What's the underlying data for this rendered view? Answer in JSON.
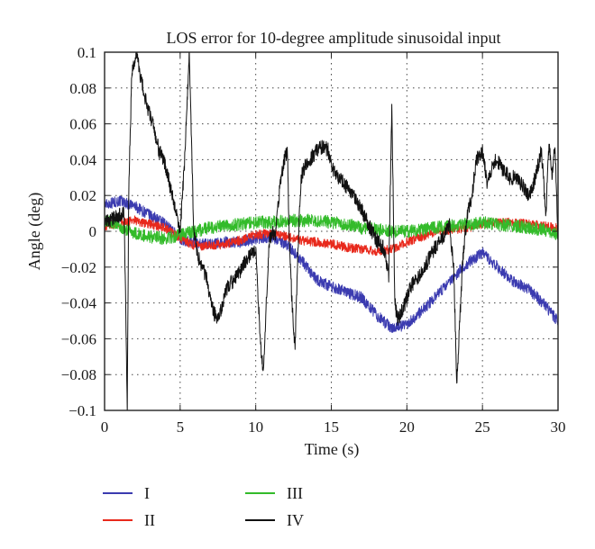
{
  "chart_data": {
    "type": "line",
    "title": "LOS error for 10-degree amplitude sinusoidal input",
    "xlabel": "Time (s)",
    "ylabel": "Angle (deg)",
    "xlim": [
      0,
      30
    ],
    "ylim": [
      -0.1,
      0.1
    ],
    "x_ticks": [
      "0",
      "5",
      "10",
      "15",
      "20",
      "25",
      "30"
    ],
    "y_ticks": [
      "0.1",
      "0.08",
      "0.06",
      "0.04",
      "0.02",
      "0",
      "−0.02",
      "−0.04",
      "−0.06",
      "−0.08",
      "−0.1"
    ],
    "grid": true,
    "legend_position": "below",
    "series": [
      {
        "name": "I",
        "color": "#3b3bb0",
        "x": [
          0,
          1,
          2,
          3,
          4,
          5,
          6,
          7,
          8,
          9,
          10,
          11,
          12,
          13,
          14,
          15,
          16,
          17,
          18,
          19,
          20,
          21,
          22,
          23,
          24,
          25,
          26,
          27,
          28,
          29,
          30
        ],
        "y": [
          0.015,
          0.017,
          0.014,
          0.009,
          0.004,
          -0.004,
          -0.007,
          -0.007,
          -0.006,
          -0.006,
          -0.004,
          -0.003,
          -0.007,
          -0.016,
          -0.027,
          -0.031,
          -0.034,
          -0.037,
          -0.047,
          -0.054,
          -0.052,
          -0.044,
          -0.036,
          -0.026,
          -0.018,
          -0.012,
          -0.02,
          -0.028,
          -0.032,
          -0.04,
          -0.05
        ]
      },
      {
        "name": "II",
        "color": "#e8291c",
        "x": [
          0,
          1,
          2,
          3,
          4,
          5,
          6,
          7,
          8,
          9,
          10,
          11,
          12,
          13,
          14,
          15,
          16,
          17,
          18,
          19,
          20,
          21,
          22,
          23,
          24,
          25,
          26,
          27,
          28,
          29,
          30
        ],
        "y": [
          0.003,
          0.005,
          0.006,
          0.004,
          0.002,
          -0.004,
          -0.008,
          -0.008,
          -0.007,
          -0.005,
          -0.002,
          -0.001,
          -0.003,
          -0.005,
          -0.006,
          -0.007,
          -0.009,
          -0.01,
          -0.011,
          -0.01,
          -0.006,
          -0.003,
          0.0,
          0.001,
          0.002,
          0.004,
          0.005,
          0.005,
          0.004,
          0.003,
          0.002
        ]
      },
      {
        "name": "III",
        "color": "#33bb2a",
        "x": [
          0,
          1,
          2,
          3,
          4,
          5,
          6,
          7,
          8,
          9,
          10,
          11,
          12,
          13,
          14,
          15,
          16,
          17,
          18,
          19,
          20,
          21,
          22,
          23,
          24,
          25,
          26,
          27,
          28,
          29,
          30
        ],
        "y": [
          0.006,
          0.003,
          -0.001,
          -0.003,
          -0.004,
          -0.002,
          0.0,
          0.002,
          0.003,
          0.004,
          0.005,
          0.005,
          0.006,
          0.006,
          0.006,
          0.005,
          0.004,
          0.002,
          0.001,
          0.0,
          0.0,
          0.001,
          0.002,
          0.003,
          0.004,
          0.005,
          0.004,
          0.003,
          0.002,
          0.001,
          -0.002
        ]
      },
      {
        "name": "IV",
        "color": "#111111",
        "x": [
          0,
          1.3,
          1.5,
          1.6,
          1.8,
          2.1,
          2.4,
          2.8,
          3.2,
          3.6,
          3.9,
          4.2,
          4.6,
          5.0,
          5.3,
          5.6,
          5.75,
          5.9,
          6.2,
          6.7,
          7.2,
          7.5,
          7.8,
          8.2,
          8.8,
          9.4,
          10.0,
          10.3,
          10.5,
          10.7,
          10.9,
          11.1,
          11.3,
          11.6,
          11.9,
          12.1,
          12.2,
          12.4,
          12.6,
          12.8,
          13.0,
          13.3,
          13.6,
          14.0,
          14.5,
          14.8,
          15.1,
          15.5,
          16.0,
          16.5,
          17.0,
          17.5,
          18.0,
          18.5,
          18.8,
          19.0,
          19.2,
          19.4,
          19.6,
          19.9,
          20.3,
          20.8,
          21.3,
          21.8,
          22.3,
          22.8,
          23.1,
          23.3,
          23.5,
          23.7,
          24.0,
          24.3,
          24.6,
          25.0,
          25.3,
          25.6,
          25.9,
          26.3,
          26.8,
          27.2,
          27.7,
          28.1,
          28.5,
          28.9,
          29.2,
          29.4,
          29.6,
          29.8,
          30.0
        ],
        "y": [
          0.005,
          0.01,
          -0.1,
          0.02,
          0.09,
          0.1,
          0.085,
          0.07,
          0.06,
          0.045,
          0.04,
          0.03,
          0.015,
          0.0,
          0.04,
          0.1,
          0.05,
          0.0,
          -0.015,
          -0.025,
          -0.045,
          -0.05,
          -0.04,
          -0.03,
          -0.025,
          -0.015,
          -0.01,
          -0.06,
          -0.08,
          -0.04,
          -0.005,
          0.0,
          -0.002,
          0.025,
          0.04,
          0.045,
          0.0,
          -0.04,
          -0.065,
          -0.01,
          0.03,
          0.038,
          0.04,
          0.045,
          0.048,
          0.045,
          0.035,
          0.03,
          0.025,
          0.02,
          0.012,
          0.003,
          -0.005,
          -0.01,
          -0.025,
          0.07,
          -0.04,
          -0.05,
          -0.045,
          -0.04,
          -0.03,
          -0.025,
          -0.018,
          -0.01,
          -0.005,
          0.005,
          -0.02,
          -0.085,
          -0.05,
          -0.015,
          0.01,
          0.02,
          0.04,
          0.045,
          0.028,
          0.035,
          0.04,
          0.035,
          0.03,
          0.03,
          0.025,
          0.02,
          0.03,
          0.045,
          0.01,
          0.05,
          0.03,
          0.05,
          -0.005
        ]
      }
    ]
  }
}
